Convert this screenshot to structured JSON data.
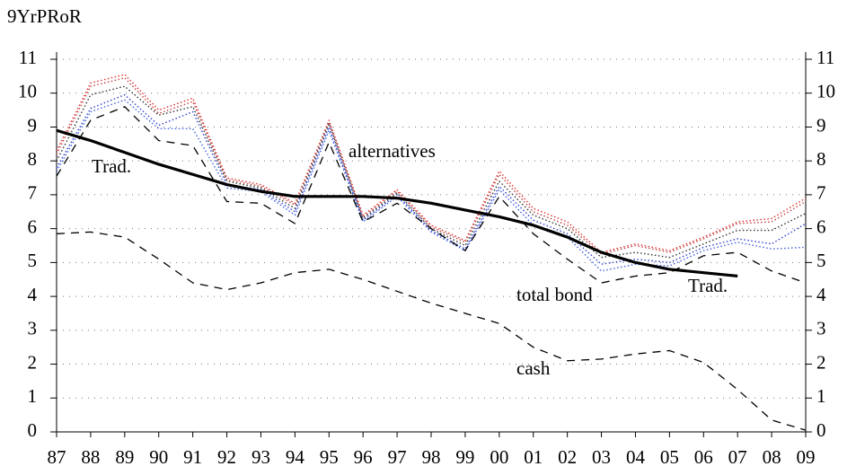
{
  "chart_data": {
    "type": "line",
    "ylabel": "9YrPRoR",
    "categories": [
      "87",
      "88",
      "89",
      "90",
      "91",
      "92",
      "93",
      "94",
      "95",
      "96",
      "97",
      "98",
      "99",
      "00",
      "01",
      "02",
      "03",
      "04",
      "05",
      "06",
      "07",
      "08",
      "09"
    ],
    "ylim": [
      0,
      11
    ],
    "yticks": [
      0,
      1,
      2,
      3,
      4,
      5,
      6,
      7,
      8,
      9,
      10,
      11
    ],
    "grid": true,
    "annotations": [
      "Trad.",
      "alternatives",
      "Trad.",
      "total bond",
      "cash"
    ],
    "series": [
      {
        "color": "#e03030",
        "style": "dotted",
        "values": [
          8.3,
          10.3,
          10.55,
          9.5,
          9.85,
          7.5,
          7.3,
          6.75,
          9.2,
          6.4,
          7.15,
          6.1,
          5.65,
          7.7,
          6.6,
          6.2,
          5.3,
          5.55,
          5.35,
          5.75,
          6.2,
          6.3,
          6.9
        ]
      },
      {
        "color": "#c04040",
        "style": "dotted",
        "values": [
          8.2,
          10.2,
          10.45,
          9.4,
          9.75,
          7.45,
          7.25,
          6.7,
          9.15,
          6.35,
          7.1,
          6.05,
          5.6,
          7.6,
          6.5,
          6.1,
          5.25,
          5.5,
          5.3,
          5.7,
          6.15,
          6.2,
          6.8
        ]
      },
      {
        "color": "#333333",
        "style": "dotted",
        "values": [
          8.0,
          9.95,
          10.2,
          9.35,
          9.6,
          7.4,
          7.2,
          6.6,
          9.1,
          6.3,
          7.05,
          6.0,
          5.5,
          7.4,
          6.4,
          6.0,
          5.15,
          5.3,
          5.15,
          5.55,
          5.95,
          5.95,
          6.45
        ]
      },
      {
        "color": "#3040d0",
        "style": "dotted",
        "values": [
          7.8,
          9.55,
          9.95,
          9.05,
          9.45,
          7.3,
          7.15,
          6.5,
          9.0,
          6.25,
          7.0,
          5.95,
          5.4,
          7.25,
          6.25,
          5.85,
          4.95,
          5.1,
          5.0,
          5.45,
          5.7,
          5.55,
          6.15
        ]
      },
      {
        "color": "#4060e0",
        "style": "dotted",
        "values": [
          7.7,
          9.45,
          9.8,
          8.95,
          8.95,
          7.2,
          7.1,
          6.4,
          8.9,
          6.2,
          6.95,
          5.9,
          5.35,
          7.15,
          6.1,
          5.75,
          4.75,
          4.95,
          4.9,
          5.35,
          5.6,
          5.4,
          5.45
        ]
      },
      {
        "name": "total bond",
        "color": "#000000",
        "style": "dashed",
        "values": [
          7.55,
          9.2,
          9.6,
          8.6,
          8.45,
          6.8,
          6.75,
          6.15,
          8.55,
          6.2,
          6.75,
          6.0,
          5.35,
          6.95,
          5.85,
          5.1,
          4.4,
          4.6,
          4.7,
          5.2,
          5.3,
          4.75,
          4.4
        ]
      },
      {
        "name": "cash",
        "color": "#000000",
        "style": "dashed",
        "values": [
          5.85,
          5.9,
          5.75,
          5.1,
          4.4,
          4.2,
          4.4,
          4.7,
          4.8,
          4.5,
          4.15,
          3.8,
          3.5,
          3.2,
          2.5,
          2.1,
          2.15,
          2.3,
          2.4,
          2.05,
          1.25,
          0.35,
          0.05
        ]
      },
      {
        "name": "Trad.",
        "color": "#000000",
        "style": "solid",
        "values": [
          8.9,
          8.6,
          8.25,
          7.9,
          7.6,
          7.3,
          7.1,
          6.95,
          6.95,
          6.95,
          6.9,
          6.75,
          6.55,
          6.35,
          6.1,
          5.75,
          5.3,
          5.0,
          4.8,
          4.7,
          4.6,
          null,
          null
        ]
      }
    ]
  }
}
